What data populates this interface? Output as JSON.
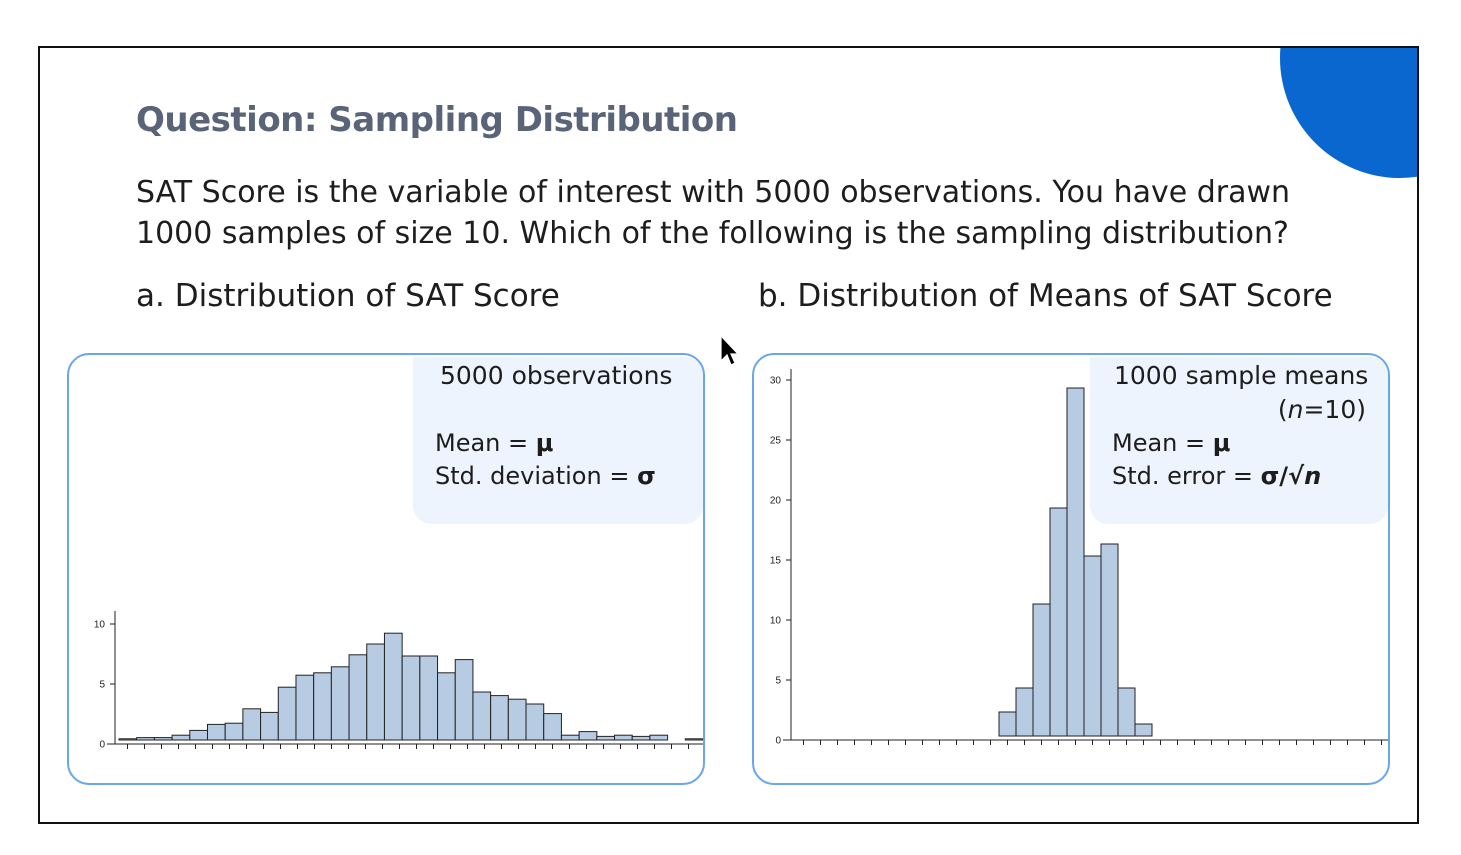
{
  "slide": {
    "title": "Question: Sampling Distribution",
    "question": "SAT Score is the variable of interest with 5000 observations. You have drawn 1000 samples of size 10. Which of the following is the sampling distribution?",
    "option_a": "a. Distribution of SAT Score",
    "option_b": "b. Distribution of Means of SAT Score",
    "accent_color": "#0a67d0",
    "panel_border_color": "#6aa6ea",
    "bar_color": "#b7cbe3"
  },
  "panel_a": {
    "heading": "5000 observations",
    "mean_label": "Mean = ",
    "mean_symbol": "μ",
    "sd_label": "Std. deviation = ",
    "sd_symbol": "σ"
  },
  "panel_b": {
    "heading": "1000 sample means",
    "heading_n": "(n=10)",
    "heading_n_open": "(",
    "heading_n_var": "n",
    "heading_n_rest": "=10)",
    "mean_label": "Mean = ",
    "mean_symbol": "μ",
    "se_label": "Std. error = ",
    "se_symbol": "σ/√",
    "se_n": "n"
  },
  "chart_data": [
    {
      "type": "bar",
      "ylim": [
        0,
        10
      ],
      "yticks": [
        "0",
        "5",
        "10"
      ],
      "grid": false,
      "values": [
        0.1,
        0.2,
        0.2,
        0.4,
        0.8,
        1.3,
        1.4,
        2.6,
        2.3,
        4.4,
        5.4,
        5.6,
        6.1,
        7.1,
        8.0,
        8.9,
        7.0,
        7.0,
        5.6,
        6.7,
        4.0,
        3.7,
        3.4,
        3.0,
        2.2,
        0.4,
        0.7,
        0.3,
        0.4,
        0.3,
        0.4,
        0.0,
        0.1
      ]
    },
    {
      "type": "bar",
      "ylim": [
        0,
        30
      ],
      "yticks": [
        "0",
        "5",
        "10",
        "15",
        "20",
        "25",
        "30"
      ],
      "grid": false,
      "values": [
        0,
        0,
        0,
        0,
        0,
        0,
        0,
        0,
        0,
        0,
        0,
        0,
        2,
        4,
        11,
        19,
        29,
        15,
        16,
        4,
        1,
        0,
        0,
        0,
        0,
        0,
        0,
        0,
        0,
        0,
        0,
        0,
        0,
        0,
        0
      ]
    }
  ]
}
